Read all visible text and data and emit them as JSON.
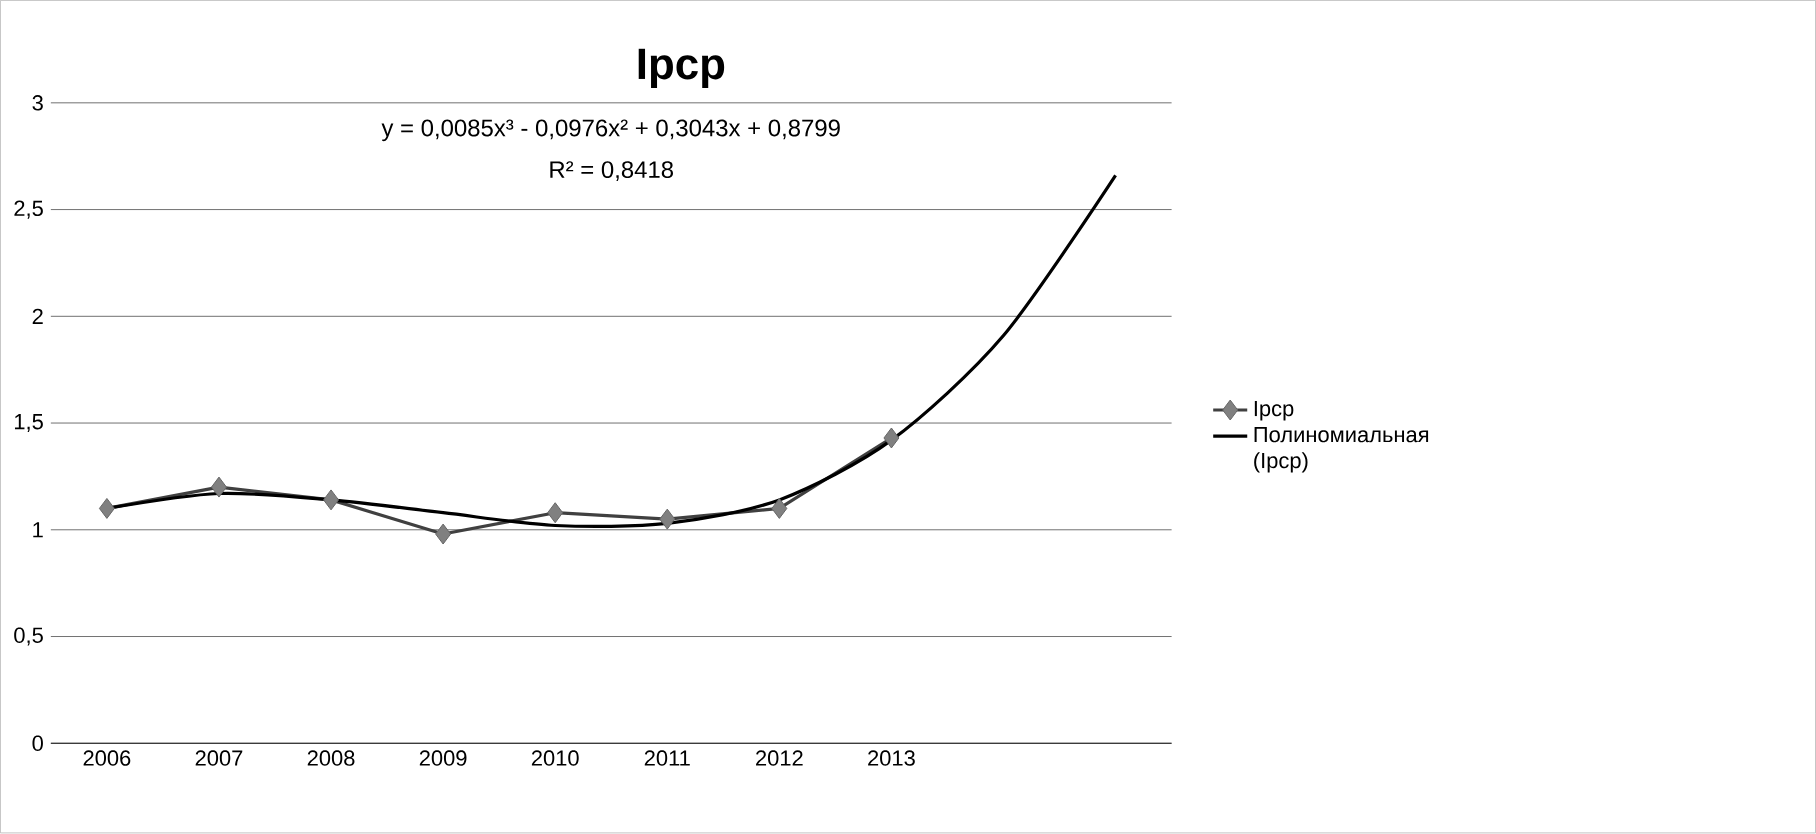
{
  "chart_data": {
    "type": "line",
    "title": "Ipcp",
    "categories": [
      "2006",
      "2007",
      "2008",
      "2009",
      "2010",
      "2011",
      "2012",
      "2013",
      null,
      null
    ],
    "series": [
      {
        "name": "Ipcp",
        "color": "#404040",
        "marker": "diamond",
        "values": [
          1.1,
          1.2,
          1.14,
          0.98,
          1.08,
          1.05,
          1.1,
          1.43,
          null,
          null
        ]
      },
      {
        "name": "Полиномиальная (Ipcp)",
        "type": "line",
        "color": "#000000",
        "marker": "none",
        "values": [
          1.1,
          1.17,
          1.14,
          1.08,
          1.02,
          1.03,
          1.14,
          1.42,
          1.91,
          2.66
        ]
      }
    ],
    "ylim": [
      0,
      3
    ],
    "yticks": [
      0,
      {
        "value": 0.5,
        "label": "0,5"
      },
      1,
      {
        "value": 1.5,
        "label": "1,5"
      },
      2,
      {
        "value": 2.5,
        "label": "2,5"
      },
      3
    ],
    "grid": "y",
    "legend": "right",
    "annotations": [
      "y = 0,0085x³ - 0,0976x² + 0,3043x + 0,8799",
      "R² = 0,8418"
    ]
  }
}
